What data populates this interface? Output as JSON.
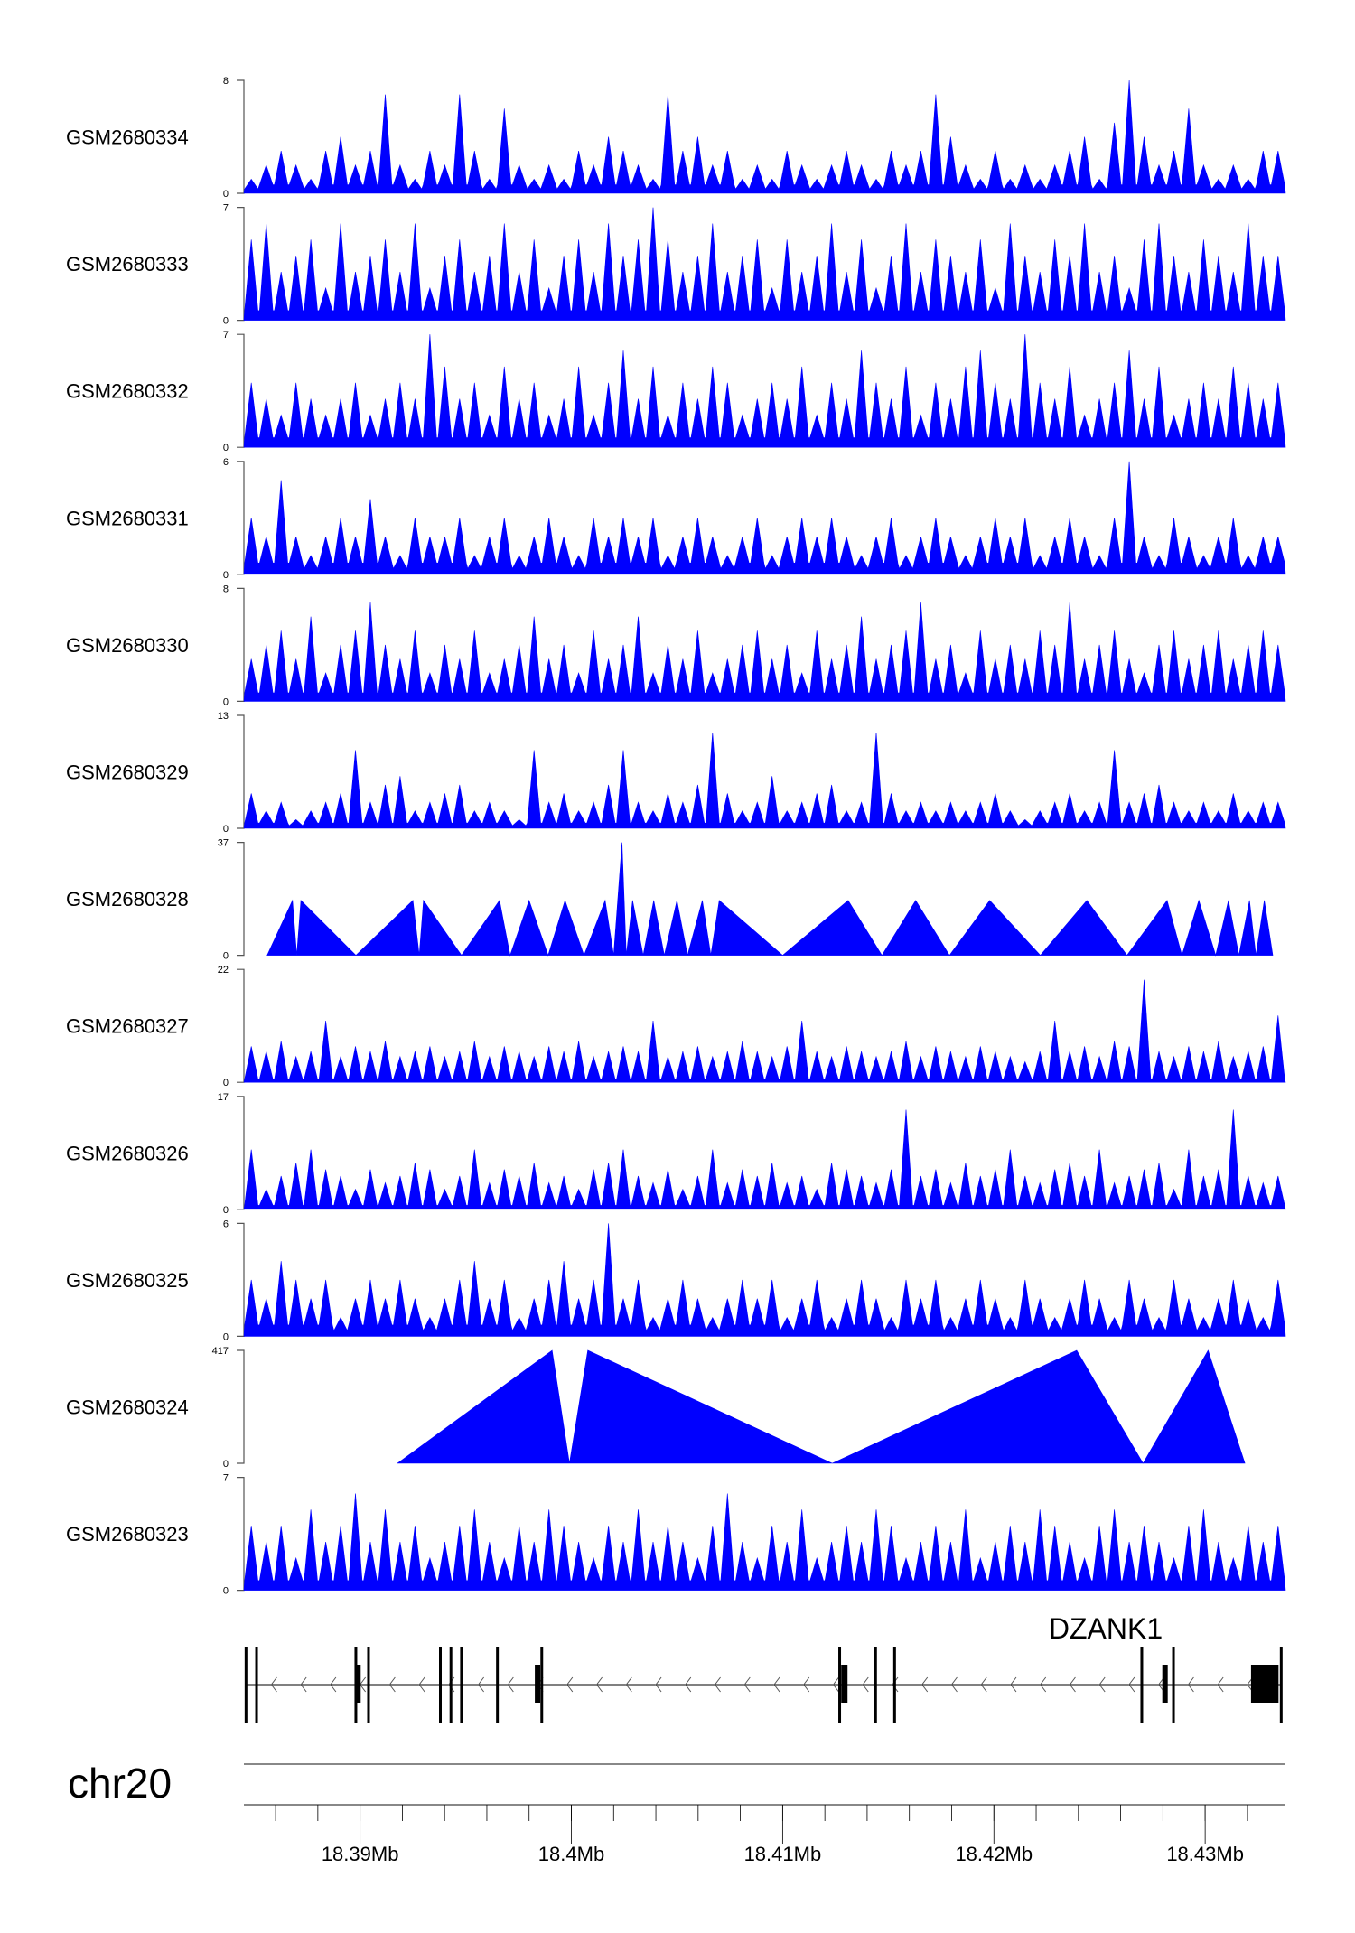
{
  "chart_data": {
    "type": "area",
    "title": "",
    "chromosome": "chr20",
    "xlim_mb": [
      18.3845,
      18.4338
    ],
    "x_ticks": [
      "18.39Mb",
      "18.4Mb",
      "18.41Mb",
      "18.42Mb",
      "18.43Mb"
    ],
    "x_tick_values": [
      18.39,
      18.4,
      18.41,
      18.42,
      18.43
    ],
    "minor_tick_step_mb": 0.002,
    "color": "#0000ff",
    "tracks": [
      {
        "name": "GSM2680334",
        "ymax": 8,
        "ymin_label": "0",
        "ymax_label": "8",
        "values": [
          1,
          2,
          3,
          2,
          1,
          3,
          4,
          2,
          3,
          7,
          2,
          1,
          3,
          2,
          7,
          3,
          1,
          6,
          2,
          1,
          2,
          1,
          3,
          2,
          4,
          3,
          2,
          1,
          7,
          3,
          4,
          2,
          3,
          1,
          2,
          1,
          3,
          2,
          1,
          2,
          3,
          2,
          1,
          3,
          2,
          3,
          7,
          4,
          2,
          1,
          3,
          1,
          2,
          1,
          2,
          3,
          4,
          1,
          5,
          8,
          4,
          2,
          3,
          6,
          2,
          1,
          2,
          1,
          3,
          3
        ]
      },
      {
        "name": "GSM2680333",
        "ymax": 7,
        "ymin_label": "0",
        "ymax_label": "7",
        "values": [
          5,
          6,
          3,
          4,
          5,
          2,
          6,
          3,
          4,
          5,
          3,
          6,
          2,
          4,
          5,
          3,
          4,
          6,
          3,
          5,
          2,
          4,
          5,
          3,
          6,
          4,
          5,
          7,
          5,
          3,
          4,
          6,
          3,
          4,
          5,
          2,
          5,
          3,
          4,
          6,
          3,
          5,
          2,
          4,
          6,
          3,
          5,
          4,
          3,
          5,
          2,
          6,
          4,
          3,
          5,
          4,
          6,
          3,
          4,
          2,
          5,
          6,
          4,
          3,
          5,
          4,
          3,
          6,
          4,
          4
        ]
      },
      {
        "name": "GSM2680332",
        "ymax": 7,
        "ymin_label": "0",
        "ymax_label": "7",
        "values": [
          4,
          3,
          2,
          4,
          3,
          2,
          3,
          4,
          2,
          3,
          4,
          3,
          7,
          5,
          3,
          4,
          2,
          5,
          3,
          4,
          2,
          3,
          5,
          2,
          4,
          6,
          3,
          5,
          2,
          4,
          3,
          5,
          4,
          2,
          3,
          4,
          3,
          5,
          2,
          4,
          3,
          6,
          4,
          3,
          5,
          2,
          4,
          3,
          5,
          6,
          4,
          3,
          7,
          4,
          3,
          5,
          2,
          3,
          4,
          6,
          3,
          5,
          2,
          3,
          4,
          3,
          5,
          4,
          3,
          4
        ]
      },
      {
        "name": "GSM2680331",
        "ymax": 6,
        "ymin_label": "0",
        "ymax_label": "6",
        "values": [
          3,
          2,
          5,
          2,
          1,
          2,
          3,
          2,
          4,
          2,
          1,
          3,
          2,
          2,
          3,
          1,
          2,
          3,
          1,
          2,
          3,
          2,
          1,
          3,
          2,
          3,
          2,
          3,
          1,
          2,
          3,
          2,
          1,
          2,
          3,
          1,
          2,
          3,
          2,
          3,
          2,
          1,
          2,
          3,
          1,
          2,
          3,
          2,
          1,
          2,
          3,
          2,
          3,
          1,
          2,
          3,
          2,
          1,
          3,
          6,
          2,
          1,
          3,
          2,
          1,
          2,
          3,
          1,
          2,
          2
        ]
      },
      {
        "name": "GSM2680330",
        "ymax": 8,
        "ymin_label": "0",
        "ymax_label": "8",
        "values": [
          3,
          4,
          5,
          3,
          6,
          2,
          4,
          5,
          7,
          4,
          3,
          5,
          2,
          4,
          3,
          5,
          2,
          3,
          4,
          6,
          3,
          4,
          2,
          5,
          3,
          4,
          6,
          2,
          4,
          3,
          5,
          2,
          3,
          4,
          5,
          3,
          4,
          2,
          5,
          3,
          4,
          6,
          3,
          4,
          5,
          7,
          3,
          4,
          2,
          5,
          3,
          4,
          3,
          5,
          4,
          7,
          3,
          4,
          5,
          3,
          2,
          4,
          5,
          3,
          4,
          5,
          3,
          4,
          5,
          4
        ]
      },
      {
        "name": "GSM2680329",
        "ymax": 13,
        "ymin_label": "0",
        "ymax_label": "13",
        "values": [
          4,
          2,
          3,
          1,
          2,
          3,
          4,
          9,
          3,
          5,
          6,
          2,
          3,
          4,
          5,
          2,
          3,
          2,
          1,
          9,
          3,
          4,
          2,
          3,
          5,
          9,
          3,
          2,
          4,
          3,
          5,
          11,
          4,
          2,
          3,
          6,
          2,
          3,
          4,
          5,
          2,
          3,
          11,
          4,
          2,
          3,
          2,
          3,
          2,
          3,
          4,
          2,
          1,
          2,
          3,
          4,
          2,
          3,
          9,
          3,
          4,
          5,
          3,
          2,
          3,
          2,
          4,
          2,
          3,
          3
        ]
      },
      {
        "name": "GSM2680328",
        "ymax": 37,
        "ymin_label": "0",
        "ymax_label": "37",
        "points": [
          [
            18.3856,
            0
          ],
          [
            18.3868,
            18
          ],
          [
            18.387,
            0
          ],
          [
            18.3872,
            18
          ],
          [
            18.3898,
            0
          ],
          [
            18.3925,
            18
          ],
          [
            18.3928,
            0
          ],
          [
            18.393,
            18
          ],
          [
            18.3948,
            0
          ],
          [
            18.3966,
            18
          ],
          [
            18.3971,
            0
          ],
          [
            18.398,
            18
          ],
          [
            18.3989,
            0
          ],
          [
            18.3997,
            18
          ],
          [
            18.4006,
            0
          ],
          [
            18.4016,
            18
          ],
          [
            18.402,
            0
          ],
          [
            18.4024,
            37
          ],
          [
            18.4026,
            0
          ],
          [
            18.4029,
            18
          ],
          [
            18.4034,
            0
          ],
          [
            18.4039,
            18
          ],
          [
            18.4044,
            0
          ],
          [
            18.405,
            18
          ],
          [
            18.4055,
            0
          ],
          [
            18.4062,
            18
          ],
          [
            18.4066,
            0
          ],
          [
            18.407,
            18
          ],
          [
            18.41,
            0
          ],
          [
            18.4131,
            18
          ],
          [
            18.4147,
            0
          ],
          [
            18.4163,
            18
          ],
          [
            18.4179,
            0
          ],
          [
            18.4198,
            18
          ],
          [
            18.4222,
            0
          ],
          [
            18.4244,
            18
          ],
          [
            18.4263,
            0
          ],
          [
            18.4282,
            18
          ],
          [
            18.4289,
            0
          ],
          [
            18.4297,
            18
          ],
          [
            18.4305,
            0
          ],
          [
            18.4311,
            18
          ],
          [
            18.4316,
            0
          ],
          [
            18.4321,
            18
          ],
          [
            18.4324,
            0
          ],
          [
            18.4328,
            18
          ],
          [
            18.4332,
            0
          ]
        ]
      },
      {
        "name": "GSM2680327",
        "ymax": 22,
        "ymin_label": "0",
        "ymax_label": "22",
        "values": [
          7,
          6,
          8,
          5,
          6,
          12,
          5,
          7,
          6,
          8,
          5,
          6,
          7,
          5,
          6,
          8,
          5,
          7,
          6,
          5,
          7,
          6,
          8,
          5,
          6,
          7,
          6,
          12,
          5,
          6,
          7,
          5,
          6,
          8,
          6,
          5,
          7,
          12,
          6,
          5,
          7,
          6,
          5,
          6,
          8,
          5,
          7,
          6,
          5,
          7,
          6,
          5,
          4,
          6,
          12,
          6,
          7,
          5,
          8,
          7,
          20,
          6,
          5,
          7,
          6,
          8,
          5,
          6,
          7,
          13
        ]
      },
      {
        "name": "GSM2680326",
        "ymax": 17,
        "ymin_label": "0",
        "ymax_label": "17",
        "values": [
          9,
          3,
          5,
          7,
          9,
          6,
          5,
          3,
          6,
          4,
          5,
          7,
          6,
          3,
          5,
          9,
          4,
          6,
          5,
          7,
          4,
          5,
          3,
          6,
          7,
          9,
          5,
          4,
          6,
          3,
          5,
          9,
          4,
          6,
          5,
          7,
          4,
          5,
          3,
          7,
          6,
          5,
          4,
          6,
          15,
          5,
          6,
          4,
          7,
          5,
          6,
          9,
          5,
          4,
          6,
          7,
          5,
          9,
          4,
          5,
          6,
          7,
          3,
          9,
          5,
          6,
          15,
          5,
          4,
          5
        ]
      },
      {
        "name": "GSM2680325",
        "ymax": 6,
        "ymin_label": "0",
        "ymax_label": "6",
        "values": [
          3,
          2,
          4,
          3,
          2,
          3,
          1,
          2,
          3,
          2,
          3,
          2,
          1,
          2,
          3,
          4,
          2,
          3,
          1,
          2,
          3,
          4,
          2,
          3,
          6,
          2,
          3,
          1,
          2,
          3,
          2,
          1,
          2,
          3,
          2,
          3,
          1,
          2,
          3,
          1,
          2,
          3,
          2,
          1,
          3,
          2,
          3,
          1,
          2,
          3,
          2,
          1,
          3,
          2,
          1,
          2,
          3,
          2,
          1,
          3,
          2,
          1,
          3,
          2,
          1,
          2,
          3,
          2,
          1,
          3
        ]
      },
      {
        "name": "GSM2680324",
        "ymax": 417,
        "ymin_label": "0",
        "ymax_label": "417",
        "points": [
          [
            18.39177,
            0
          ],
          [
            18.39909,
            417
          ],
          [
            18.39991,
            0
          ],
          [
            18.40078,
            417
          ],
          [
            18.41235,
            0
          ],
          [
            18.42392,
            417
          ],
          [
            18.42706,
            0
          ],
          [
            18.43014,
            417
          ],
          [
            18.43188,
            0
          ]
        ]
      },
      {
        "name": "GSM2680323",
        "ymax": 7,
        "ymin_label": "0",
        "ymax_label": "7",
        "values": [
          4,
          3,
          4,
          2,
          5,
          3,
          4,
          6,
          3,
          5,
          3,
          4,
          2,
          3,
          4,
          5,
          3,
          2,
          4,
          3,
          5,
          4,
          3,
          2,
          4,
          3,
          5,
          3,
          4,
          3,
          2,
          4,
          6,
          3,
          2,
          4,
          3,
          5,
          2,
          3,
          4,
          3,
          5,
          4,
          2,
          3,
          4,
          3,
          5,
          2,
          3,
          4,
          3,
          5,
          4,
          3,
          2,
          4,
          5,
          3,
          4,
          3,
          2,
          4,
          5,
          3,
          2,
          4,
          3,
          4
        ]
      }
    ],
    "gene": {
      "name": "DZANK1",
      "strand": "-",
      "start_mb": 18.3846,
      "end_mb": 18.4336,
      "exons_mb": [
        18.3846,
        18.3851,
        18.3898,
        18.3904,
        18.3938,
        18.3943,
        18.3948,
        18.3965,
        18.3986,
        18.4127,
        18.4144,
        18.4153,
        18.427,
        18.4285,
        18.4336
      ],
      "thick_blocks_mb": [
        [
          18.3899,
          18.39
        ],
        [
          18.3984,
          18.3986
        ],
        [
          18.4129,
          18.4132
        ],
        [
          18.4281,
          18.42815
        ],
        [
          18.4323,
          18.4336
        ]
      ]
    }
  }
}
